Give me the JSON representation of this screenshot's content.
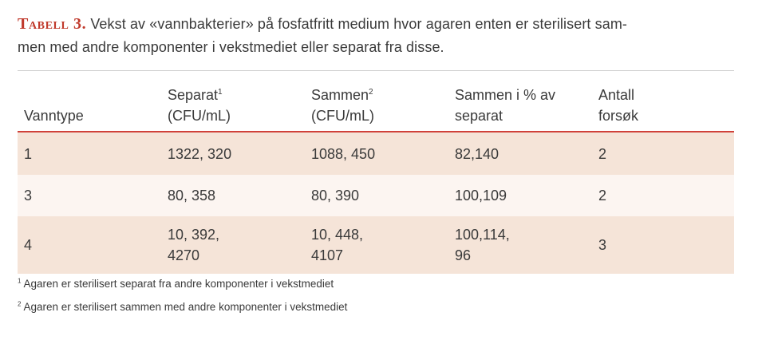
{
  "caption": {
    "label": "Tabell 3.",
    "line1": "Vekst av «vannbakterier» på fosfatfritt medium hvor agaren enten er sterilisert sam-",
    "line2": "men med andre komponenter i vekstmediet eller separat fra disse."
  },
  "table": {
    "headers": [
      {
        "text": "Vanntype",
        "sup": "",
        "line2": ""
      },
      {
        "text": "Separat",
        "sup": "1",
        "line2": "(CFU/mL)"
      },
      {
        "text": "Sammen",
        "sup": "2",
        "line2": "(CFU/mL)"
      },
      {
        "text": "Sammen i % av",
        "sup": "",
        "line2": "separat"
      },
      {
        "text": "Antall",
        "sup": "",
        "line2": "forsøk"
      }
    ],
    "rows": [
      [
        "1",
        "1322, 320",
        "1088, 450",
        "82,140",
        "2"
      ],
      [
        "3",
        "80, 358",
        "80, 390",
        "100,109",
        "2"
      ],
      [
        "4",
        "10, 392,\n4270",
        "10, 448,\n4107",
        "100,114,\n96",
        "3"
      ]
    ]
  },
  "footnotes": [
    {
      "sup": "1",
      "text": "Agaren er sterilisert separat fra andre komponenter i vekstmediet"
    },
    {
      "sup": "2",
      "text": "Agaren er sterilisert sammen med andre komponenter i vekstmediet"
    }
  ]
}
